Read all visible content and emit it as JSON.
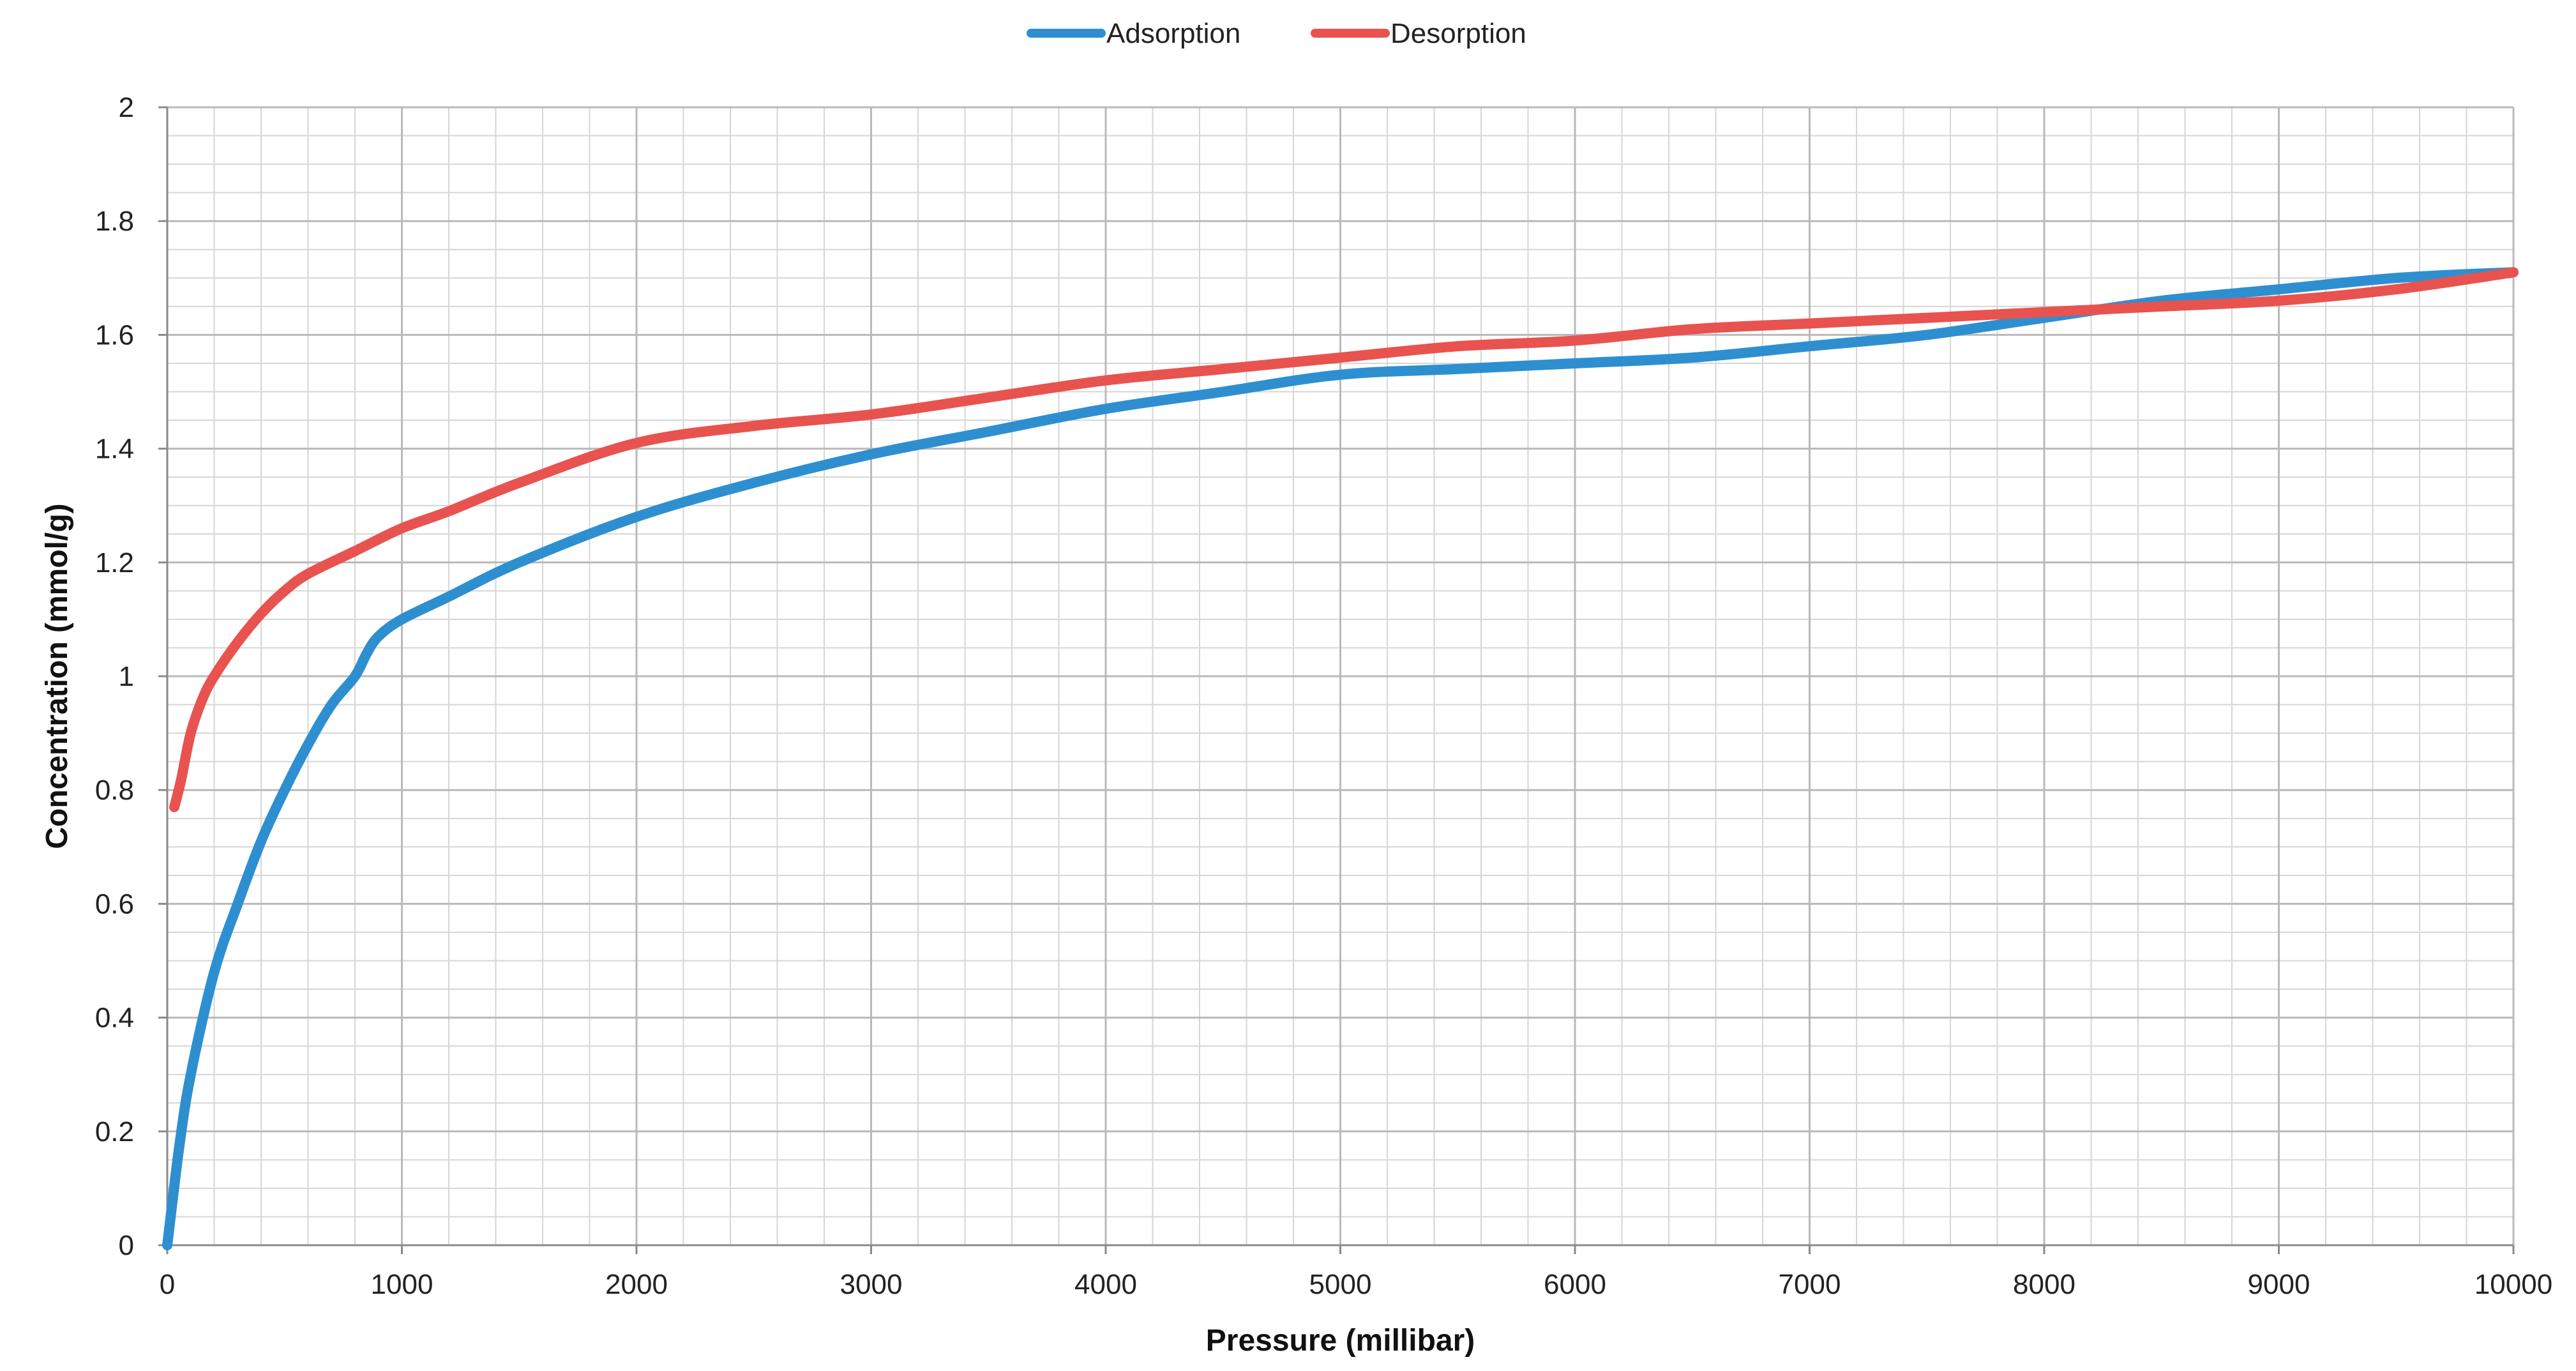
{
  "chart_data": {
    "type": "line",
    "title": "",
    "xlabel": "Pressure (millibar)",
    "ylabel": "Concentration (mmol/g)",
    "xlim": [
      0,
      10000
    ],
    "ylim": [
      0,
      2
    ],
    "x_ticks": [
      "0",
      "1000",
      "2000",
      "3000",
      "4000",
      "5000",
      "6000",
      "7000",
      "8000",
      "9000",
      "10000"
    ],
    "y_ticks": [
      "0",
      "0.2",
      "0.4",
      "0.6",
      "0.8",
      "1",
      "1.2",
      "1.4",
      "1.6",
      "1.8",
      "2"
    ],
    "grid": true,
    "legend_position": "top-center",
    "series": [
      {
        "name": "Adsorption",
        "color": "#2e8fd0",
        "x": [
          0,
          50,
          100,
          200,
          300,
          400,
          500,
          600,
          700,
          800,
          850,
          900,
          1000,
          1200,
          1500,
          2000,
          2500,
          3000,
          3500,
          4000,
          4500,
          5000,
          5500,
          6000,
          6500,
          7000,
          7500,
          8000,
          8500,
          9000,
          9500,
          10000
        ],
        "y": [
          0,
          0.17,
          0.3,
          0.48,
          0.6,
          0.71,
          0.8,
          0.88,
          0.95,
          1.0,
          1.04,
          1.07,
          1.1,
          1.14,
          1.2,
          1.28,
          1.34,
          1.39,
          1.43,
          1.47,
          1.5,
          1.53,
          1.54,
          1.55,
          1.56,
          1.58,
          1.6,
          1.63,
          1.66,
          1.68,
          1.7,
          1.71
        ]
      },
      {
        "name": "Desorption",
        "color": "#e8534f",
        "x": [
          30,
          60,
          100,
          150,
          200,
          300,
          400,
          500,
          600,
          800,
          1000,
          1200,
          1500,
          2000,
          2500,
          3000,
          3500,
          4000,
          4500,
          5000,
          5500,
          6000,
          6500,
          7000,
          7500,
          8000,
          8500,
          9000,
          9500,
          10000
        ],
        "y": [
          0.77,
          0.82,
          0.9,
          0.96,
          1.0,
          1.06,
          1.11,
          1.15,
          1.18,
          1.22,
          1.26,
          1.29,
          1.34,
          1.41,
          1.44,
          1.46,
          1.49,
          1.52,
          1.54,
          1.56,
          1.58,
          1.59,
          1.61,
          1.62,
          1.63,
          1.64,
          1.65,
          1.66,
          1.68,
          1.71
        ]
      }
    ]
  }
}
